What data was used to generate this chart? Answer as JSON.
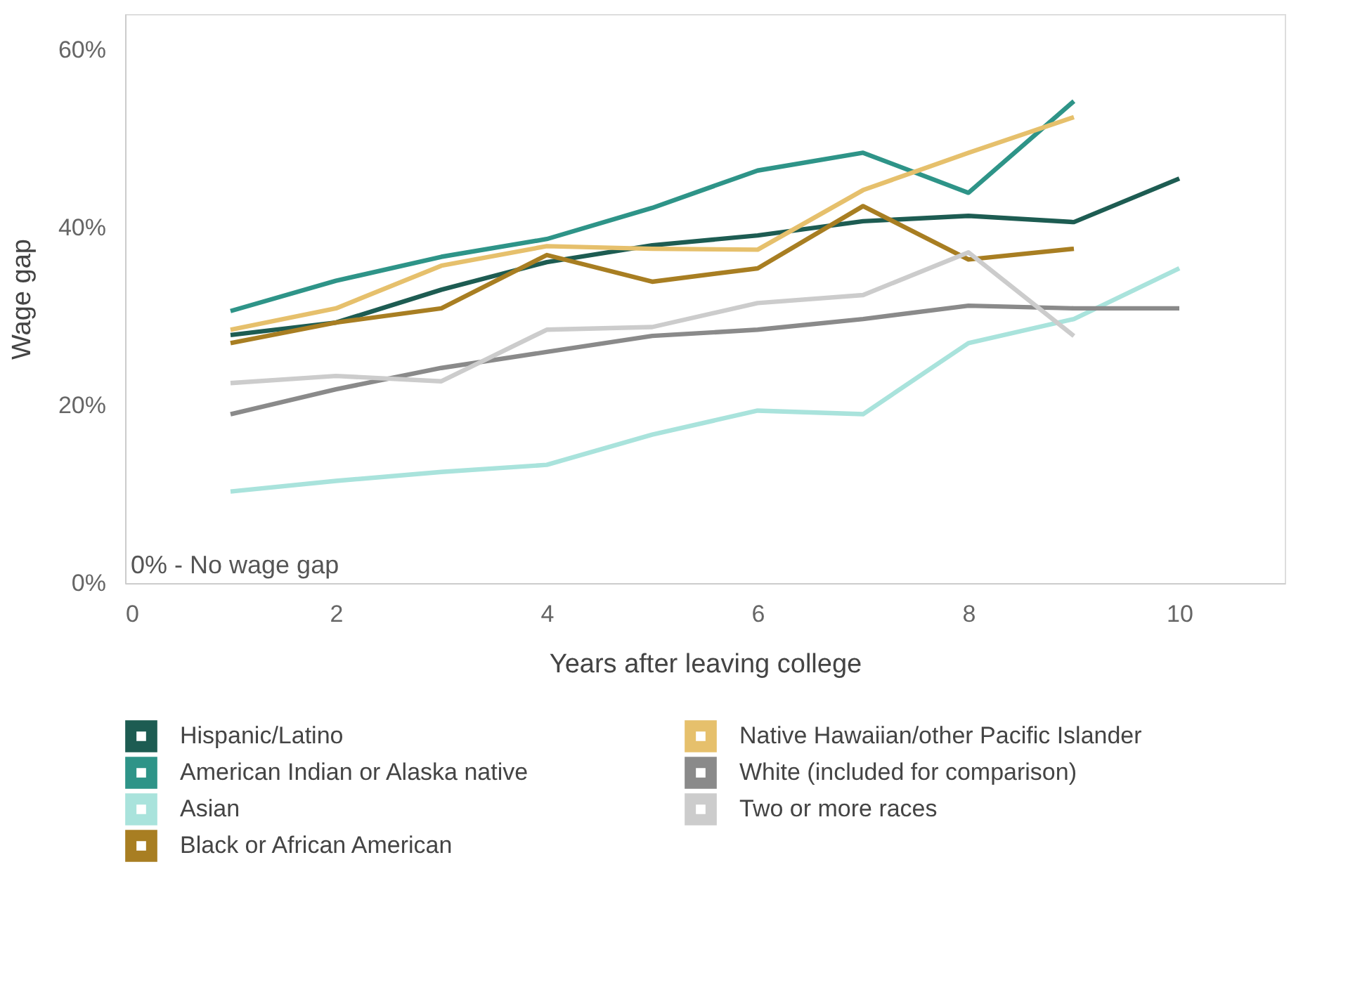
{
  "chart_data": {
    "type": "line",
    "xlabel": "Years after leaving college",
    "ylabel": "Wage gap",
    "x": [
      1,
      2,
      3,
      4,
      5,
      6,
      7,
      8,
      9,
      10
    ],
    "xlim": [
      0,
      11
    ],
    "xticks": [
      0,
      2,
      4,
      6,
      8,
      10
    ],
    "ylim": [
      0,
      64
    ],
    "yticks": [
      {
        "value": 0,
        "label": "0%"
      },
      {
        "value": 20,
        "label": "20%"
      },
      {
        "value": 40,
        "label": "40%"
      },
      {
        "value": 60,
        "label": "60%"
      }
    ],
    "grid": false,
    "legend": "bottom",
    "marker": "none",
    "line_style": "solid",
    "annotations": [
      "0% - No wage gap"
    ],
    "series": [
      {
        "name": "Hispanic/Latino",
        "color": "#1d5c52",
        "values": [
          27.9,
          29.3,
          33.0,
          36.1,
          38.0,
          39.1,
          40.7,
          41.3,
          40.6,
          45.5
        ]
      },
      {
        "name": "American Indian or Alaska native",
        "color": "#2e9488",
        "values": [
          30.6,
          34.0,
          36.7,
          38.7,
          42.2,
          46.4,
          48.4,
          43.9,
          54.2,
          null
        ]
      },
      {
        "name": "Asian",
        "color": "#a9e3dc",
        "values": [
          10.3,
          11.5,
          12.5,
          13.3,
          16.7,
          19.4,
          19.0,
          27.0,
          29.7,
          35.4
        ]
      },
      {
        "name": "Black or African American",
        "color": "#a87e22",
        "values": [
          27.0,
          29.3,
          30.9,
          36.9,
          33.9,
          35.4,
          42.4,
          36.4,
          37.6,
          null
        ]
      },
      {
        "name": "Native Hawaiian/other Pacific Islander",
        "color": "#e6c06c",
        "values": [
          28.5,
          30.9,
          35.7,
          37.9,
          37.6,
          37.5,
          44.2,
          48.4,
          52.4,
          null
        ]
      },
      {
        "name": "White (included for comparison)",
        "color": "#8a8a8a",
        "values": [
          19.0,
          21.8,
          24.2,
          26.0,
          27.8,
          28.5,
          29.7,
          31.2,
          30.9,
          30.9
        ]
      },
      {
        "name": "Two or more races",
        "color": "#cccccc",
        "values": [
          22.5,
          23.3,
          22.7,
          28.5,
          28.8,
          31.5,
          32.4,
          37.2,
          27.8,
          null
        ]
      }
    ]
  }
}
